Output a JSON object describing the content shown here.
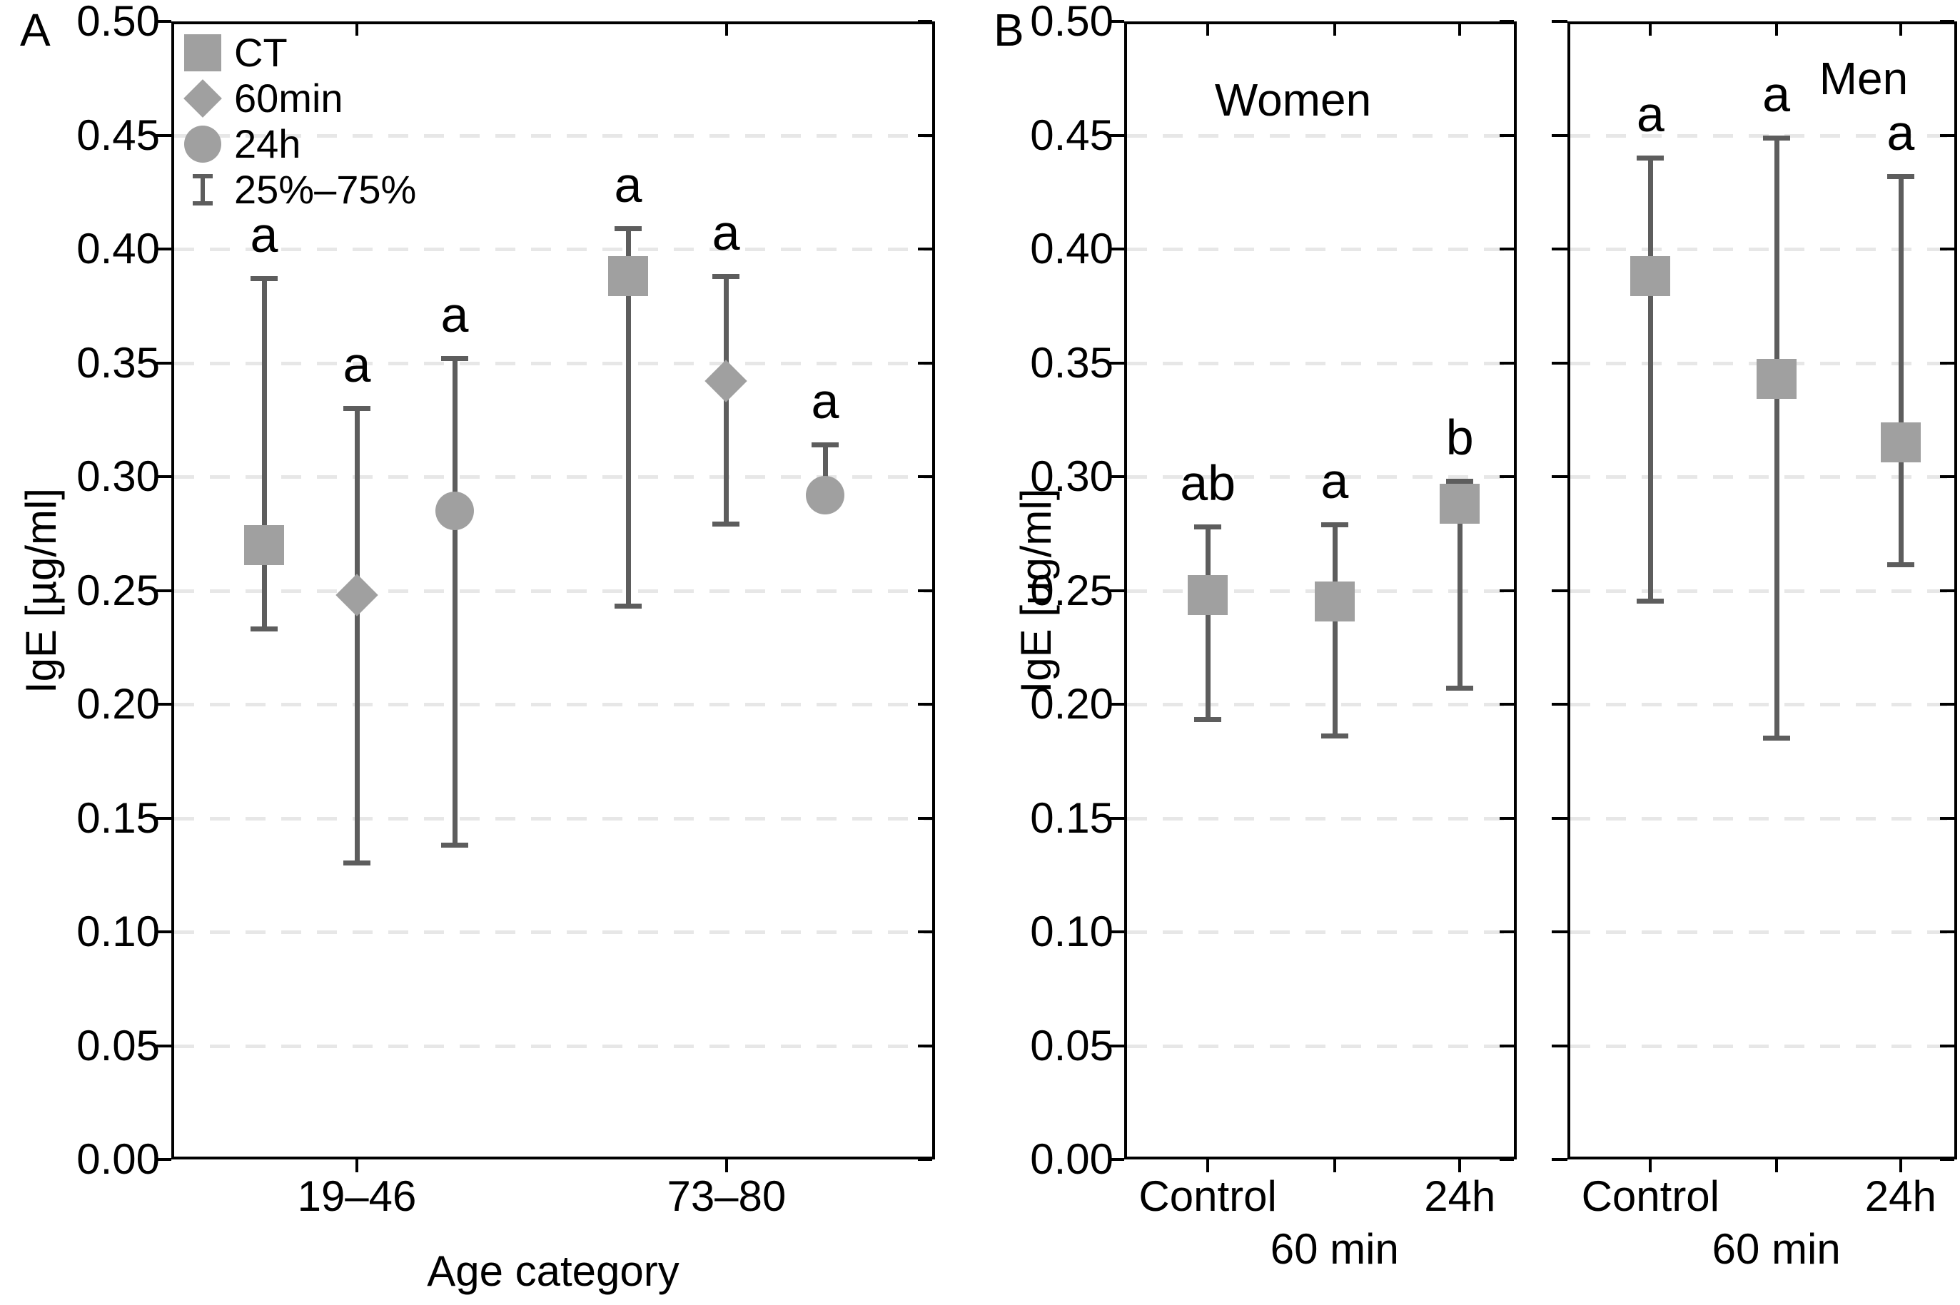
{
  "colors": {
    "marker_fill": "#a0a0a0",
    "whisker": "#5d5d5d",
    "gridline": "#e7e7e7",
    "frame": "#000000",
    "text": "#000000"
  },
  "chart_data": [
    {
      "id": "A",
      "type": "scatter",
      "panel_label": "A",
      "xlabel": "Age category",
      "ylabel": "IgE [µg/ml]",
      "ylim": [
        0.0,
        0.5
      ],
      "ytick_step": 0.05,
      "ytick_labels": [
        "0.00",
        "0.05",
        "0.10",
        "0.15",
        "0.20",
        "0.25",
        "0.30",
        "0.35",
        "0.40",
        "0.45",
        "0.50"
      ],
      "grid": "horizontal-dashed",
      "error_bar_meaning": "25%–75%",
      "legend": {
        "position": "top-left-inside",
        "entries": [
          {
            "marker": "square",
            "label": "CT"
          },
          {
            "marker": "diamond",
            "label": "60min"
          },
          {
            "marker": "circle",
            "label": "24h"
          },
          {
            "marker": "errorbar",
            "label": "25%–75%"
          }
        ]
      },
      "categories": [
        "19–46",
        "73–80"
      ],
      "series": [
        {
          "name": "CT",
          "marker": "square",
          "points": [
            {
              "category": "19–46",
              "median": 0.27,
              "p25": 0.233,
              "p75": 0.387,
              "sig": "a"
            },
            {
              "category": "73–80",
              "median": 0.388,
              "p25": 0.243,
              "p75": 0.409,
              "sig": "a"
            }
          ]
        },
        {
          "name": "60min",
          "marker": "diamond",
          "points": [
            {
              "category": "19–46",
              "median": 0.248,
              "p25": 0.13,
              "p75": 0.33,
              "sig": "a"
            },
            {
              "category": "73–80",
              "median": 0.342,
              "p25": 0.279,
              "p75": 0.388,
              "sig": "a"
            }
          ]
        },
        {
          "name": "24h",
          "marker": "circle",
          "points": [
            {
              "category": "19–46",
              "median": 0.285,
              "p25": 0.138,
              "p75": 0.352,
              "sig": "a"
            },
            {
              "category": "73–80",
              "median": 0.292,
              "p25": 0.287,
              "p75": 0.314,
              "sig": "a"
            }
          ]
        }
      ]
    },
    {
      "id": "B",
      "type": "scatter",
      "panel_label": "B",
      "ylabel": "IgE [ug/ml]",
      "ylim": [
        0.0,
        0.5
      ],
      "ytick_step": 0.05,
      "ytick_labels": [
        "0.00",
        "0.05",
        "0.10",
        "0.15",
        "0.20",
        "0.25",
        "0.30",
        "0.35",
        "0.40",
        "0.45",
        "0.50"
      ],
      "grid": "horizontal-dashed",
      "marker": "square",
      "subpanels": [
        {
          "title": "Women",
          "categories": [
            "Control",
            "60 min",
            "24h"
          ],
          "points": [
            {
              "x": "Control",
              "median": 0.248,
              "p25": 0.193,
              "p75": 0.278,
              "sig": "ab"
            },
            {
              "x": "60 min",
              "median": 0.245,
              "p25": 0.186,
              "p75": 0.279,
              "sig": "a"
            },
            {
              "x": "24h",
              "median": 0.288,
              "p25": 0.207,
              "p75": 0.298,
              "sig": "b"
            }
          ]
        },
        {
          "title": "Men",
          "categories": [
            "Control",
            "60 min",
            "24h"
          ],
          "points": [
            {
              "x": "Control",
              "median": 0.388,
              "p25": 0.245,
              "p75": 0.44,
              "sig": "a"
            },
            {
              "x": "60 min",
              "median": 0.343,
              "p25": 0.185,
              "p75": 0.449,
              "sig": "a"
            },
            {
              "x": "24h",
              "median": 0.315,
              "p25": 0.261,
              "p75": 0.432,
              "sig": "a"
            }
          ]
        }
      ]
    }
  ]
}
